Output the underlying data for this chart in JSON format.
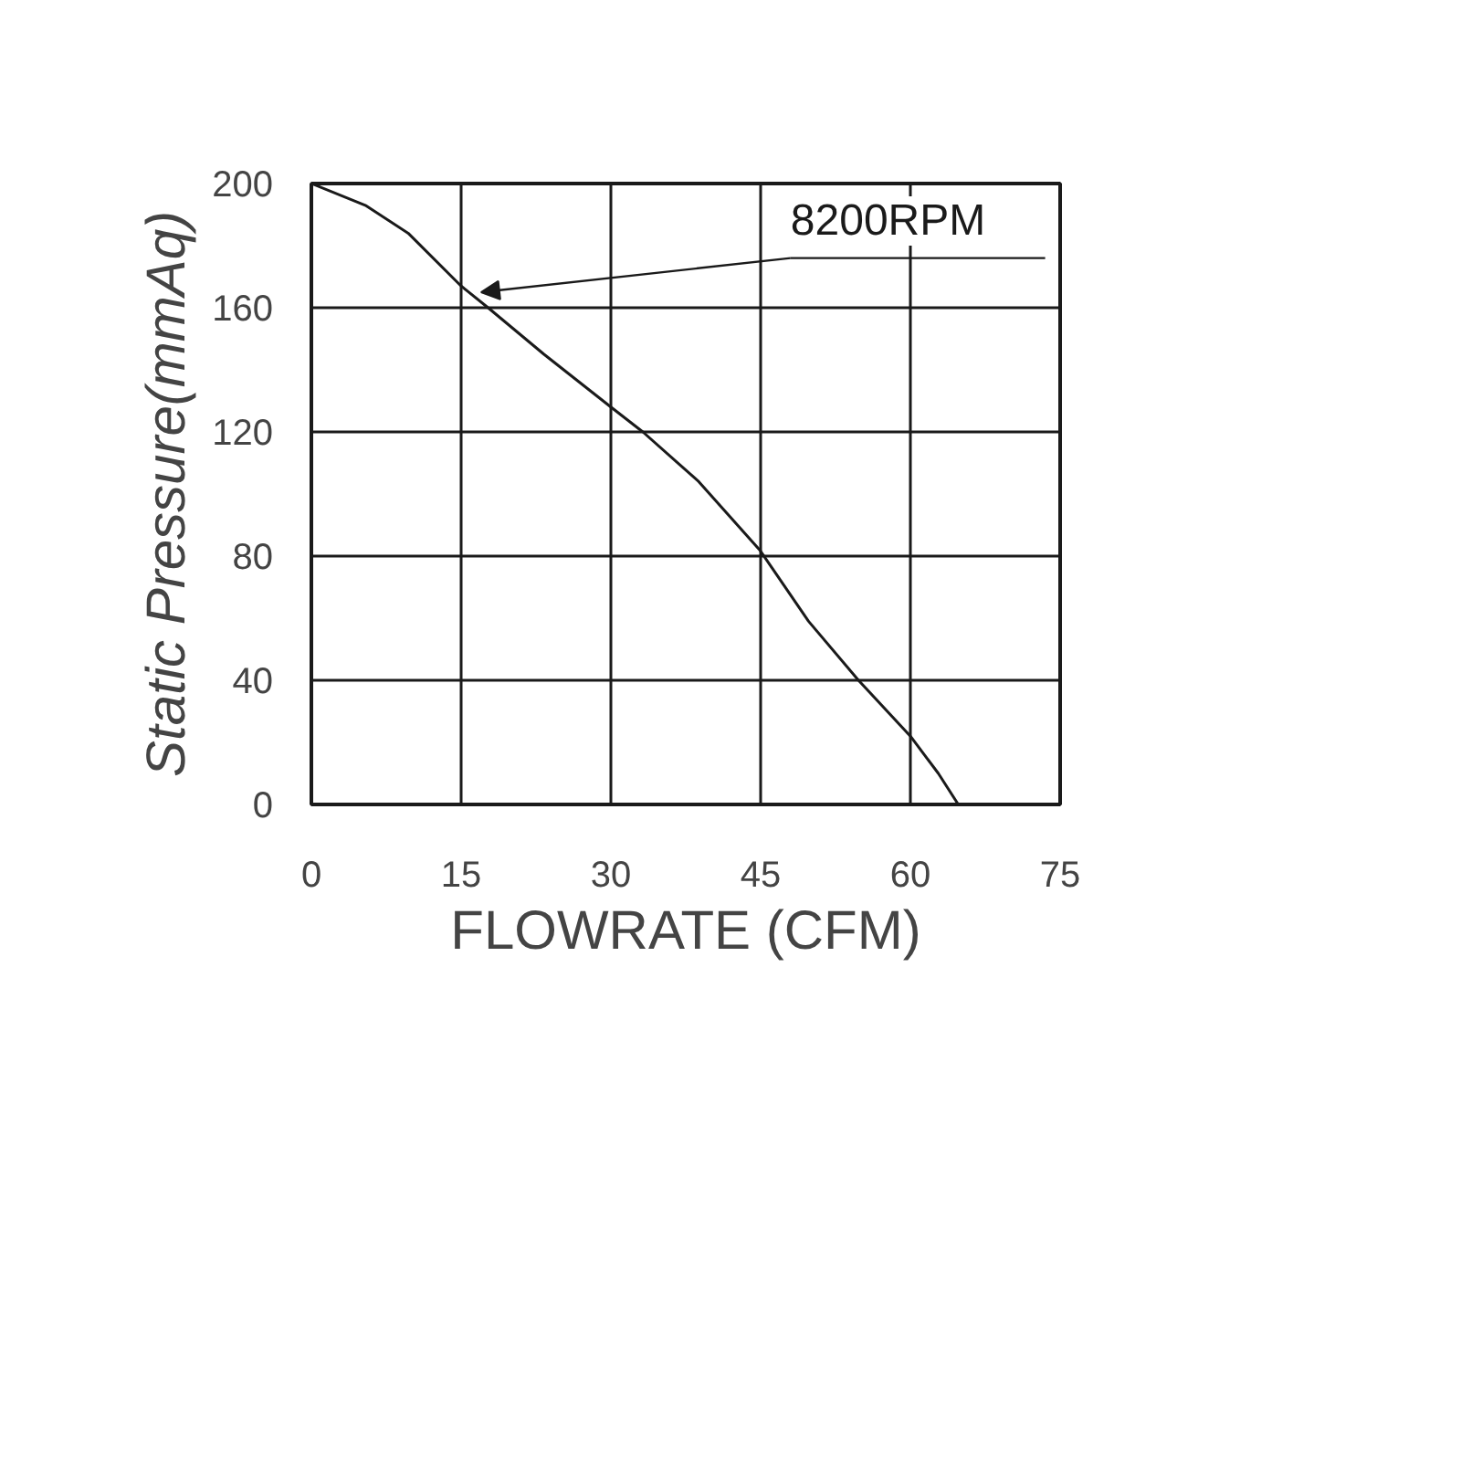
{
  "chart_data": {
    "type": "line",
    "xlabel": "FLOWRATE (CFM)",
    "ylabel": "Static Pressure(mmAq)",
    "x": [
      0,
      5.4,
      9.7,
      15,
      17.7,
      23.3,
      30,
      33.2,
      38.8,
      44.9,
      49.8,
      54.8,
      60,
      62.8,
      64.8
    ],
    "series": [
      {
        "color": "#1a1a1a",
        "values": [
          200,
          193,
          184,
          167,
          160,
          145,
          128,
          120,
          104,
          82,
          59,
          40,
          22,
          10,
          0
        ]
      }
    ],
    "xlim": [
      0,
      75
    ],
    "ylim": [
      0,
      200
    ],
    "xticks": [
      0,
      15,
      30,
      45,
      60,
      75
    ],
    "yticks": [
      0,
      40,
      80,
      120,
      160,
      200
    ],
    "grid": true,
    "marker": "none",
    "line_style": "solid",
    "annotations": [
      {
        "text": "8200RPM",
        "x": 17,
        "y": 165
      }
    ]
  }
}
